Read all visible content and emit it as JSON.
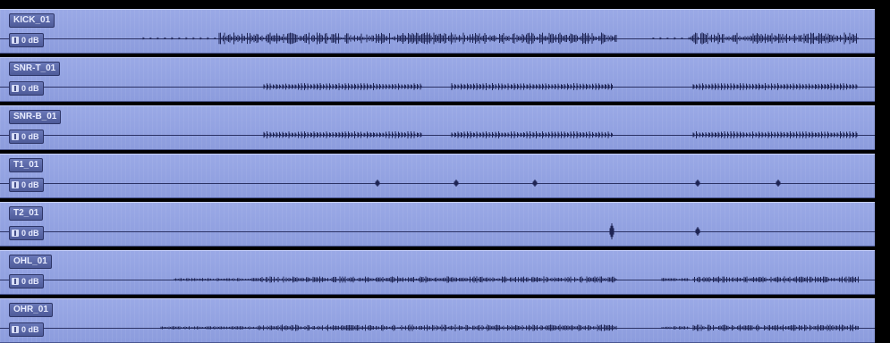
{
  "tracks": [
    {
      "name": "KICK_01",
      "gain": "0 dB"
    },
    {
      "name": "SNR-T_01",
      "gain": "0 dB"
    },
    {
      "name": "SNR-B_01",
      "gain": "0 dB"
    },
    {
      "name": "T1_01",
      "gain": "0 dB"
    },
    {
      "name": "T2_01",
      "gain": "0 dB"
    },
    {
      "name": "OHL_01",
      "gain": "0 dB"
    },
    {
      "name": "OHR_01",
      "gain": "0 dB"
    }
  ],
  "colors": {
    "track_bg": "#9aa9e6",
    "waveform": "#1e2454",
    "label_bg": "#5564a6"
  },
  "icons": {
    "gain": "gain-knob-icon"
  }
}
